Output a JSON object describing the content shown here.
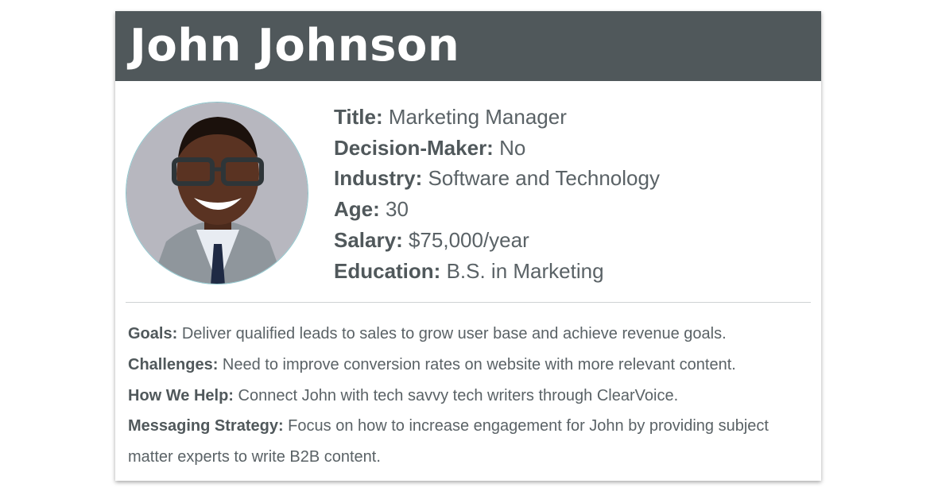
{
  "persona": {
    "name": "John Johnson",
    "header_color": "#50585b",
    "photo_icon": "person-portrait",
    "attributes": [
      {
        "label": "Title:",
        "value": "Marketing Manager"
      },
      {
        "label": "Decision-Maker:",
        "value": "No"
      },
      {
        "label": "Industry:",
        "value": "Software and Technology"
      },
      {
        "label": "Age:",
        "value": "30"
      },
      {
        "label": "Salary:",
        "value": "$75,000/year"
      },
      {
        "label": "Education:",
        "value": "B.S. in Marketing"
      }
    ],
    "details": [
      {
        "label": "Goals:",
        "value": "Deliver qualified leads to sales to grow user base and achieve revenue goals."
      },
      {
        "label": "Challenges:",
        "value": "Need to improve conversion rates on website with more relevant content."
      },
      {
        "label": "How We Help:",
        "value": "Connect John with tech savvy tech writers through ClearVoice."
      },
      {
        "label": "Messaging Strategy:",
        "value": "Focus on how to increase engagement for John by providing subject matter experts to write B2B content."
      }
    ]
  }
}
